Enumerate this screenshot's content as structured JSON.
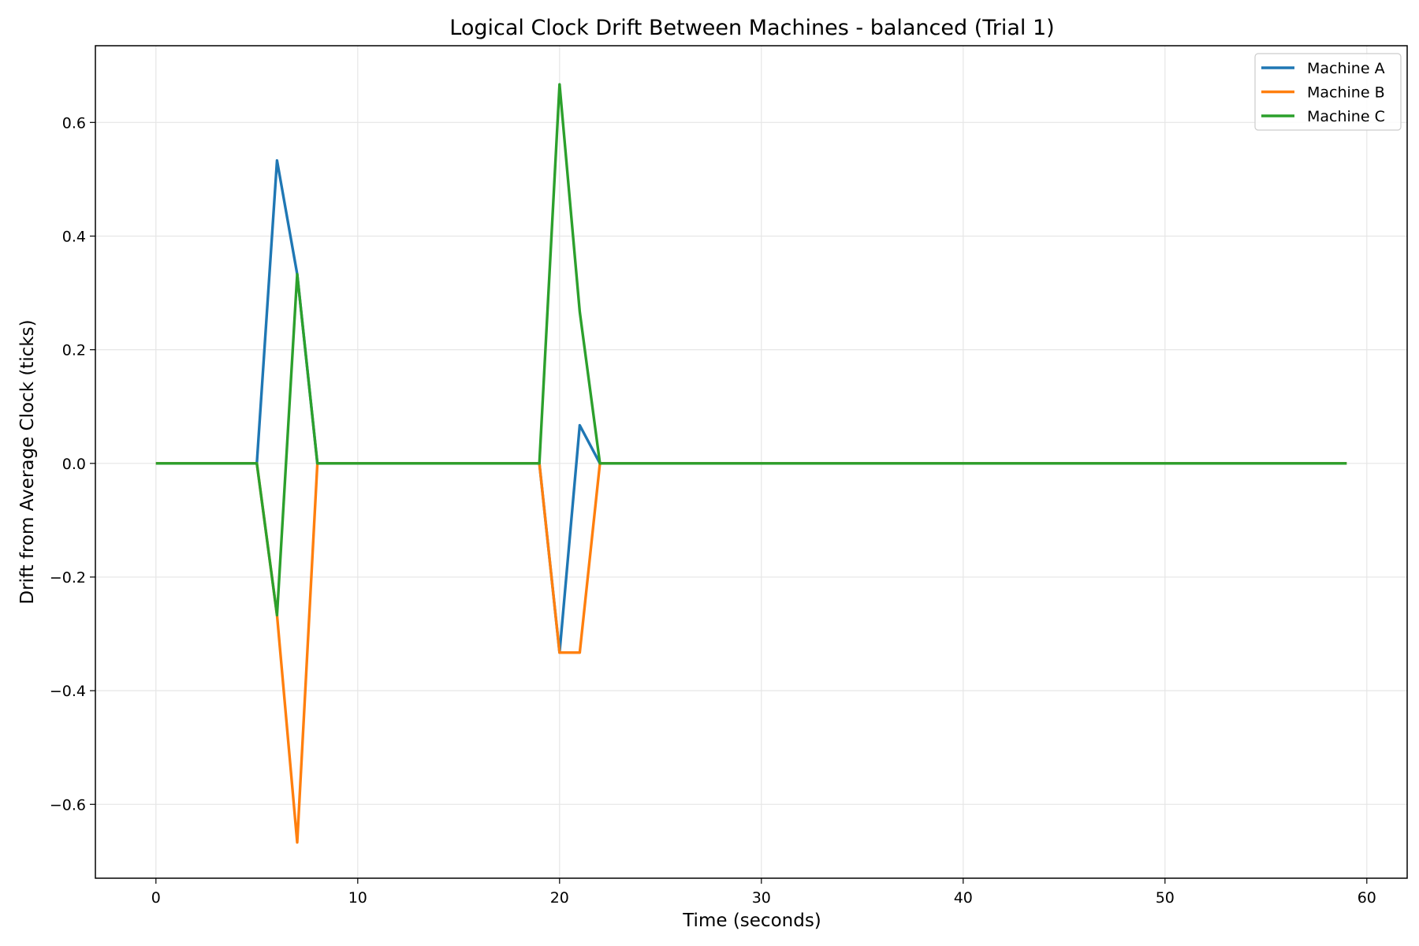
{
  "chart_data": {
    "type": "line",
    "title": "Logical Clock Drift Between Machines - balanced (Trial 1)",
    "xlabel": "Time (seconds)",
    "ylabel": "Drift from Average Clock (ticks)",
    "xlim": [
      -3,
      62
    ],
    "ylim": [
      -0.73,
      0.735
    ],
    "xticks": [
      0,
      10,
      20,
      30,
      40,
      50,
      60
    ],
    "xtick_labels": [
      "0",
      "10",
      "20",
      "30",
      "40",
      "50",
      "60"
    ],
    "yticks": [
      0.6,
      0.4,
      0.2,
      0.0,
      -0.2,
      -0.4,
      -0.6
    ],
    "ytick_labels": [
      "0.6",
      "0.4",
      "0.2",
      "0.0",
      "−0.2",
      "−0.4",
      "−0.6"
    ],
    "grid": true,
    "legend_position": "top-right",
    "series": [
      {
        "name": "Machine A",
        "color": "#1f77b4",
        "x": [
          0,
          5,
          6,
          7,
          8,
          19,
          20,
          21,
          22,
          59
        ],
        "y": [
          0,
          0,
          0.533,
          0.333,
          0,
          0,
          -0.333,
          0.067,
          0,
          0
        ]
      },
      {
        "name": "Machine B",
        "color": "#ff7f0e",
        "x": [
          0,
          5,
          6,
          7,
          8,
          19,
          20,
          21,
          22,
          59
        ],
        "y": [
          0,
          0,
          -0.267,
          -0.667,
          0,
          0,
          -0.333,
          -0.333,
          0,
          0
        ]
      },
      {
        "name": "Machine C",
        "color": "#2ca02c",
        "x": [
          0,
          5,
          6,
          7,
          8,
          19,
          20,
          21,
          22,
          59
        ],
        "y": [
          0,
          0,
          -0.267,
          0.333,
          0,
          0,
          0.667,
          0.267,
          0,
          0
        ]
      }
    ]
  }
}
